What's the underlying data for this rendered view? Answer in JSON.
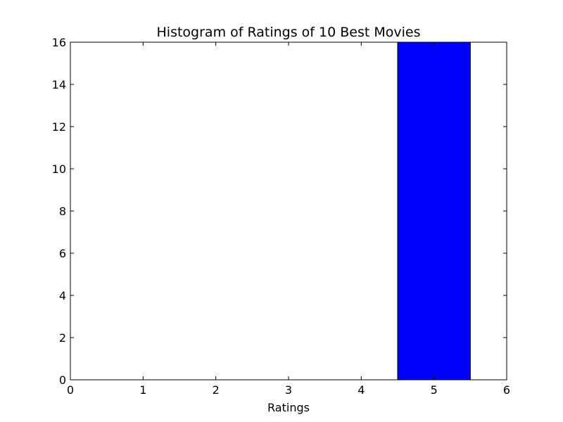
{
  "chart_data": {
    "type": "bar",
    "title": "Histogram of Ratings of 10 Best Movies",
    "xlabel": "Ratings",
    "ylabel": "",
    "xlim": [
      0,
      6
    ],
    "ylim": [
      0,
      16
    ],
    "xticks": [
      0,
      1,
      2,
      3,
      4,
      5,
      6
    ],
    "yticks": [
      0,
      2,
      4,
      6,
      8,
      10,
      12,
      14,
      16
    ],
    "bin_width": 1,
    "bars": [
      {
        "x": 1,
        "value": 0
      },
      {
        "x": 5,
        "value": 16
      }
    ],
    "bar_color": "#0000ff",
    "edge_color": "#000000",
    "grid": false,
    "legend": "none"
  }
}
